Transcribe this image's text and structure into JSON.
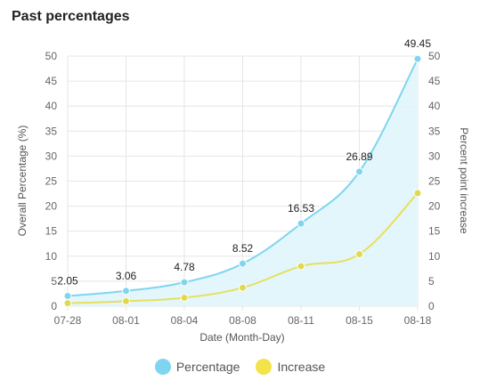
{
  "title": "Past percentages",
  "colors": {
    "percentage_line": "#7fd5ef",
    "percentage_fill": "#e0f5fb",
    "increase_line": "#e6e05c",
    "grid": "#e6e6e6"
  },
  "chart_data": {
    "type": "line",
    "title": "Past percentages",
    "xlabel": "Date (Month-Day)",
    "ylabel": "Overall Percentage (%)",
    "y2label": "Percent point increase",
    "categories": [
      "07-28",
      "08-01",
      "08-04",
      "08-08",
      "08-11",
      "08-15",
      "08-18"
    ],
    "ylim": [
      0,
      50
    ],
    "y2lim": [
      0,
      50
    ],
    "yticks": [
      "0",
      "5",
      "10",
      "15",
      "20",
      "25",
      "30",
      "35",
      "40",
      "45",
      "50"
    ],
    "grid": true,
    "legend_position": "bottom",
    "series": [
      {
        "name": "Percentage",
        "axis": "left",
        "values": [
          2.05,
          3.06,
          4.78,
          8.52,
          16.53,
          26.89,
          49.45
        ],
        "labels": [
          "2.05",
          "3.06",
          "4.78",
          "8.52",
          "16.53",
          "26.89",
          "49.45"
        ],
        "filled": true
      },
      {
        "name": "Increase",
        "axis": "right",
        "values": [
          0.6,
          1.0,
          1.7,
          3.7,
          8.0,
          10.4,
          22.6
        ],
        "filled": false
      }
    ]
  }
}
